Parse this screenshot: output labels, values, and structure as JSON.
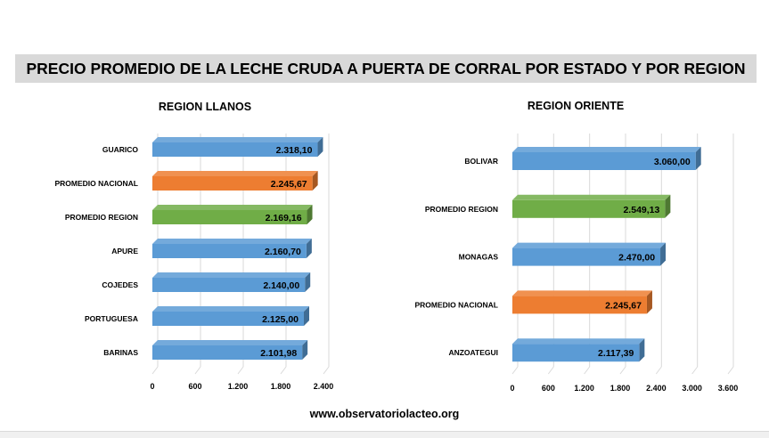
{
  "title": "PRECIO PROMEDIO DE LA LECHE CRUDA A PUERTA DE CORRAL POR ESTADO Y POR REGION",
  "footer": "www.observatoriolacteo.org",
  "colors": {
    "blue": "#5b9bd5",
    "orange": "#ed7d31",
    "green": "#70ad47"
  },
  "chart_data": [
    {
      "type": "bar",
      "orientation": "horizontal",
      "title": "REGION LLANOS",
      "categories": [
        "GUARICO",
        "PROMEDIO NACIONAL",
        "PROMEDIO REGION",
        "APURE",
        "COJEDES",
        "PORTUGUESA",
        "BARINAS"
      ],
      "values": [
        2318.1,
        2245.67,
        2169.16,
        2160.7,
        2140.0,
        2125.0,
        2101.98
      ],
      "value_labels": [
        "2.318,10",
        "2.245,67",
        "2.169,16",
        "2.160,70",
        "2.140,00",
        "2.125,00",
        "2.101,98"
      ],
      "bar_colors": [
        "blue",
        "orange",
        "green",
        "blue",
        "blue",
        "blue",
        "blue"
      ],
      "xlim": [
        0,
        2400
      ],
      "ticks": [
        0,
        600,
        1200,
        1800,
        2400
      ],
      "tick_labels": [
        "0",
        "600",
        "1.200",
        "1.800",
        "2.400"
      ],
      "grid": true,
      "legend": "none",
      "style": "3d"
    },
    {
      "type": "bar",
      "orientation": "horizontal",
      "title": "REGION ORIENTE",
      "categories": [
        "BOLIVAR",
        "PROMEDIO REGION",
        "MONAGAS",
        "PROMEDIO NACIONAL",
        "ANZOATEGUI"
      ],
      "values": [
        3060.0,
        2549.13,
        2470.0,
        2245.67,
        2117.39
      ],
      "value_labels": [
        "3.060,00",
        "2.549,13",
        "2.470,00",
        "2.245,67",
        "2.117,39"
      ],
      "bar_colors": [
        "blue",
        "green",
        "blue",
        "orange",
        "blue"
      ],
      "xlim": [
        0,
        3600
      ],
      "ticks": [
        0,
        600,
        1200,
        1800,
        2400,
        3000,
        3600
      ],
      "tick_labels": [
        "0",
        "600",
        "1.200",
        "1.800",
        "2.400",
        "3.000",
        "3.600"
      ],
      "grid": true,
      "legend": "none",
      "style": "3d"
    }
  ]
}
